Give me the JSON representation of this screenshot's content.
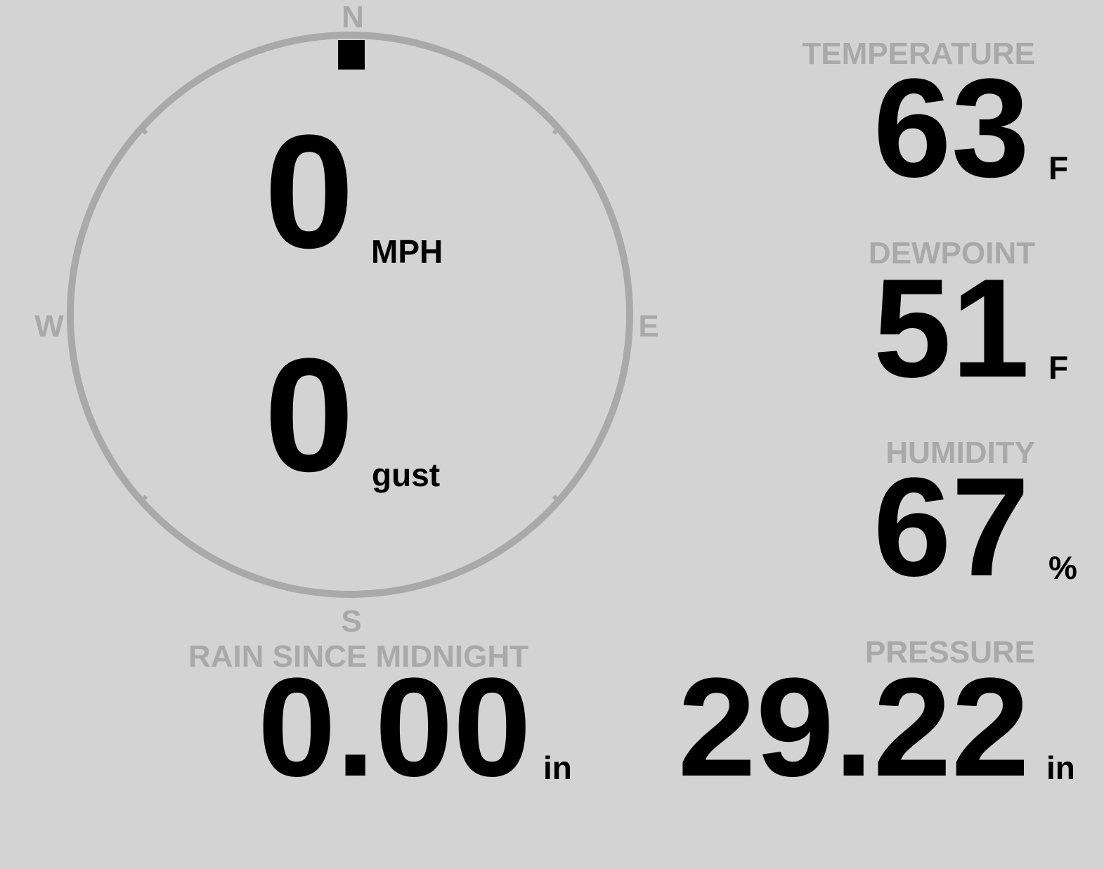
{
  "colors": {
    "background": "#d3d3d3",
    "label": "#a9a9a9",
    "value": "#000000",
    "ring": "#a9a9a9",
    "needle": "#000000"
  },
  "wind": {
    "compass": {
      "n": "N",
      "e": "E",
      "s": "S",
      "w": "W"
    },
    "direction_degrees": 0,
    "speed": "0",
    "speed_unit": "MPH",
    "gust": "0",
    "gust_unit": "gust"
  },
  "rain": {
    "label": "RAIN SINCE MIDNIGHT",
    "value": "0.00",
    "unit": "in"
  },
  "temperature": {
    "label": "TEMPERATURE",
    "value": "63",
    "unit": "F"
  },
  "dewpoint": {
    "label": "DEWPOINT",
    "value": "51",
    "unit": "F"
  },
  "humidity": {
    "label": "HUMIDITY",
    "value": "67",
    "unit": "%"
  },
  "pressure": {
    "label": "PRESSURE",
    "value": "29.22",
    "unit": "in"
  }
}
